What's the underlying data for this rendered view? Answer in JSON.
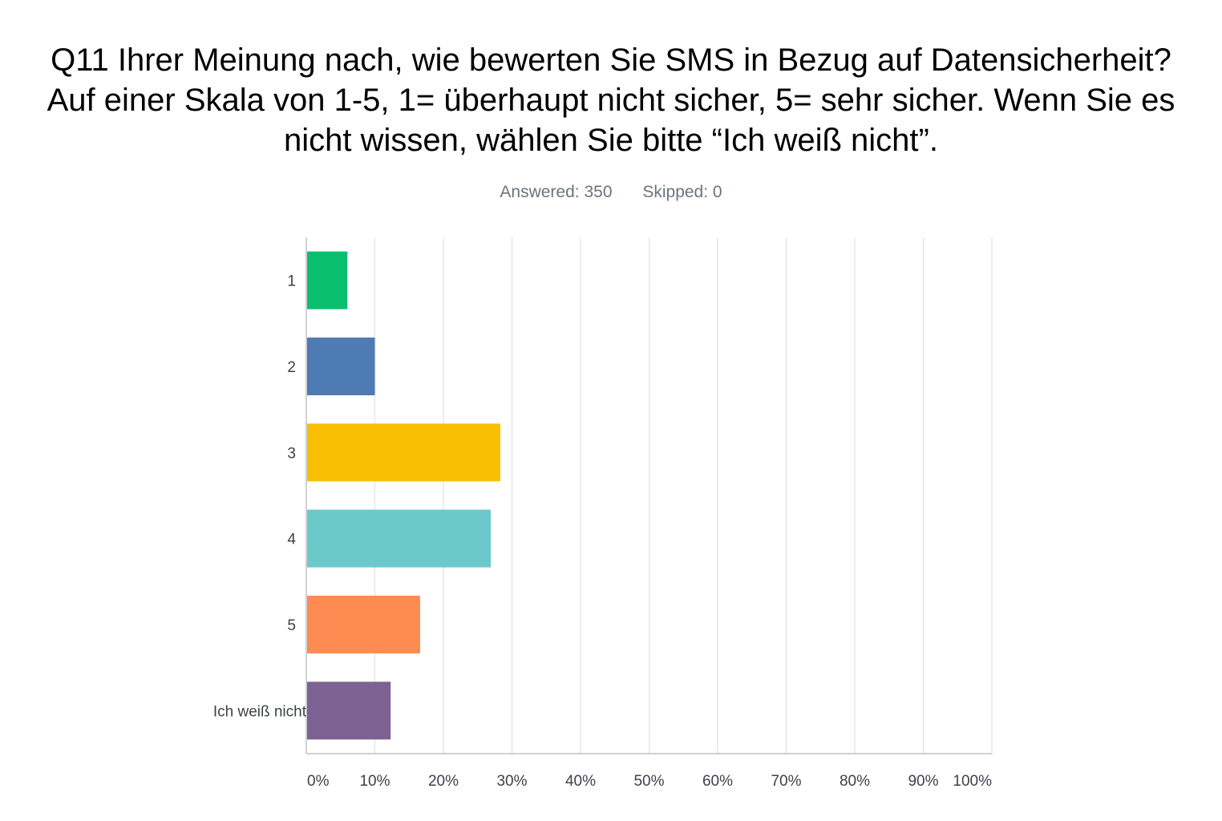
{
  "chart_data": {
    "type": "bar",
    "orientation": "horizontal",
    "title": "Q11 Ihrer Meinung nach, wie bewerten Sie SMS in Bezug auf Datensicherheit? Auf einer Skala von 1-5, 1= überhaupt nicht sicher, 5= sehr sicher. Wenn Sie es nicht wissen, wählen Sie bitte “Ich weiß nicht”.",
    "answered_label": "Answered: 350",
    "skipped_label": "Skipped: 0",
    "categories": [
      "1",
      "2",
      "3",
      "4",
      "5",
      "Ich weiß nicht"
    ],
    "values": [
      6.0,
      10.0,
      28.3,
      26.9,
      16.6,
      12.3
    ],
    "value_unit": "%",
    "colors": [
      "#0ac070",
      "#4f7bb5",
      "#f9bf03",
      "#6bc9cb",
      "#fd8b52",
      "#7c6192"
    ],
    "xlim": [
      0,
      100
    ],
    "x_ticks": [
      "0%",
      "10%",
      "20%",
      "30%",
      "40%",
      "50%",
      "60%",
      "70%",
      "80%",
      "90%",
      "100%"
    ],
    "grid": true,
    "legend": "none"
  }
}
